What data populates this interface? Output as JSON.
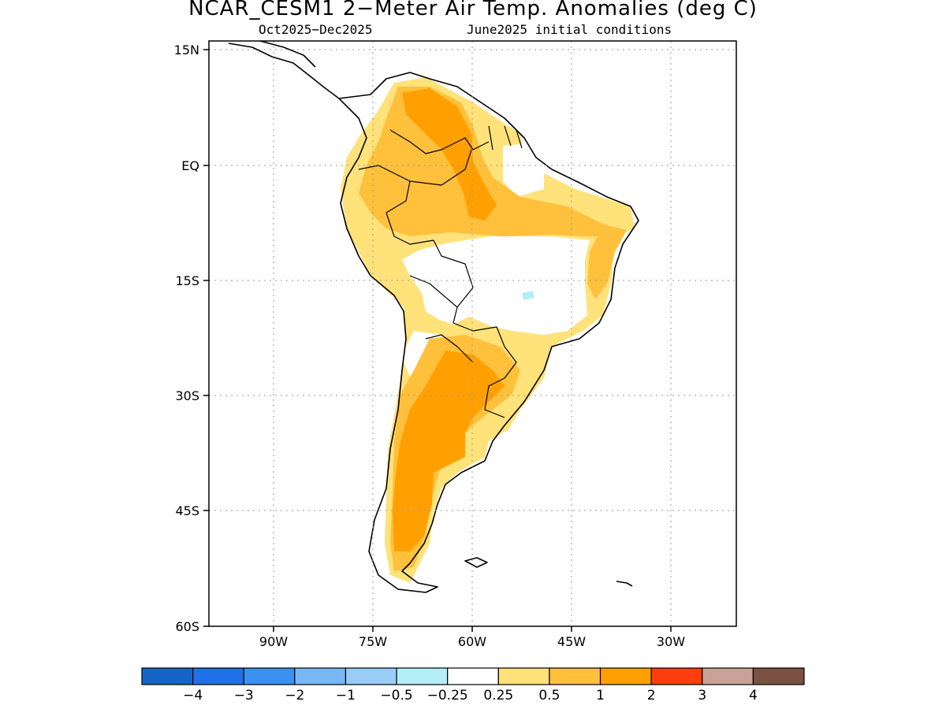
{
  "title": "NCAR_CESM1 2−Meter Air Temp. Anomalies (deg C)",
  "subtitle_left": "Oct2025−Dec2025",
  "subtitle_right": "June2025 initial conditions",
  "axes": {
    "lon_ticks": [
      "90W",
      "75W",
      "60W",
      "45W",
      "30W"
    ],
    "lat_ticks": [
      "15N",
      "EQ",
      "15S",
      "30S",
      "45S",
      "60S"
    ],
    "lon_range": [
      -98,
      -18
    ],
    "lat_range": [
      -60,
      16
    ],
    "gridlines": "dotted"
  },
  "colorbar": {
    "colors": [
      "#1764c9",
      "#2070e8",
      "#3b91f2",
      "#77b8f5",
      "#99cdf8",
      "#b4eef8",
      "#ffffff",
      "#ffe27a",
      "#ffc03c",
      "#ffa000",
      "#ff3d0f",
      "#c9a398",
      "#7b5143"
    ],
    "labels": [
      "−4",
      "−3",
      "−2",
      "−1",
      "−0.5",
      "−0.25",
      "0.25",
      "0.5",
      "1",
      "2",
      "3",
      "4"
    ]
  },
  "regions": {
    "warm_0p5": "#ffe27a",
    "warm_1": "#ffc03c",
    "warm_2": "#ffa000",
    "cool_minus_0p25": "#b4eef8"
  }
}
